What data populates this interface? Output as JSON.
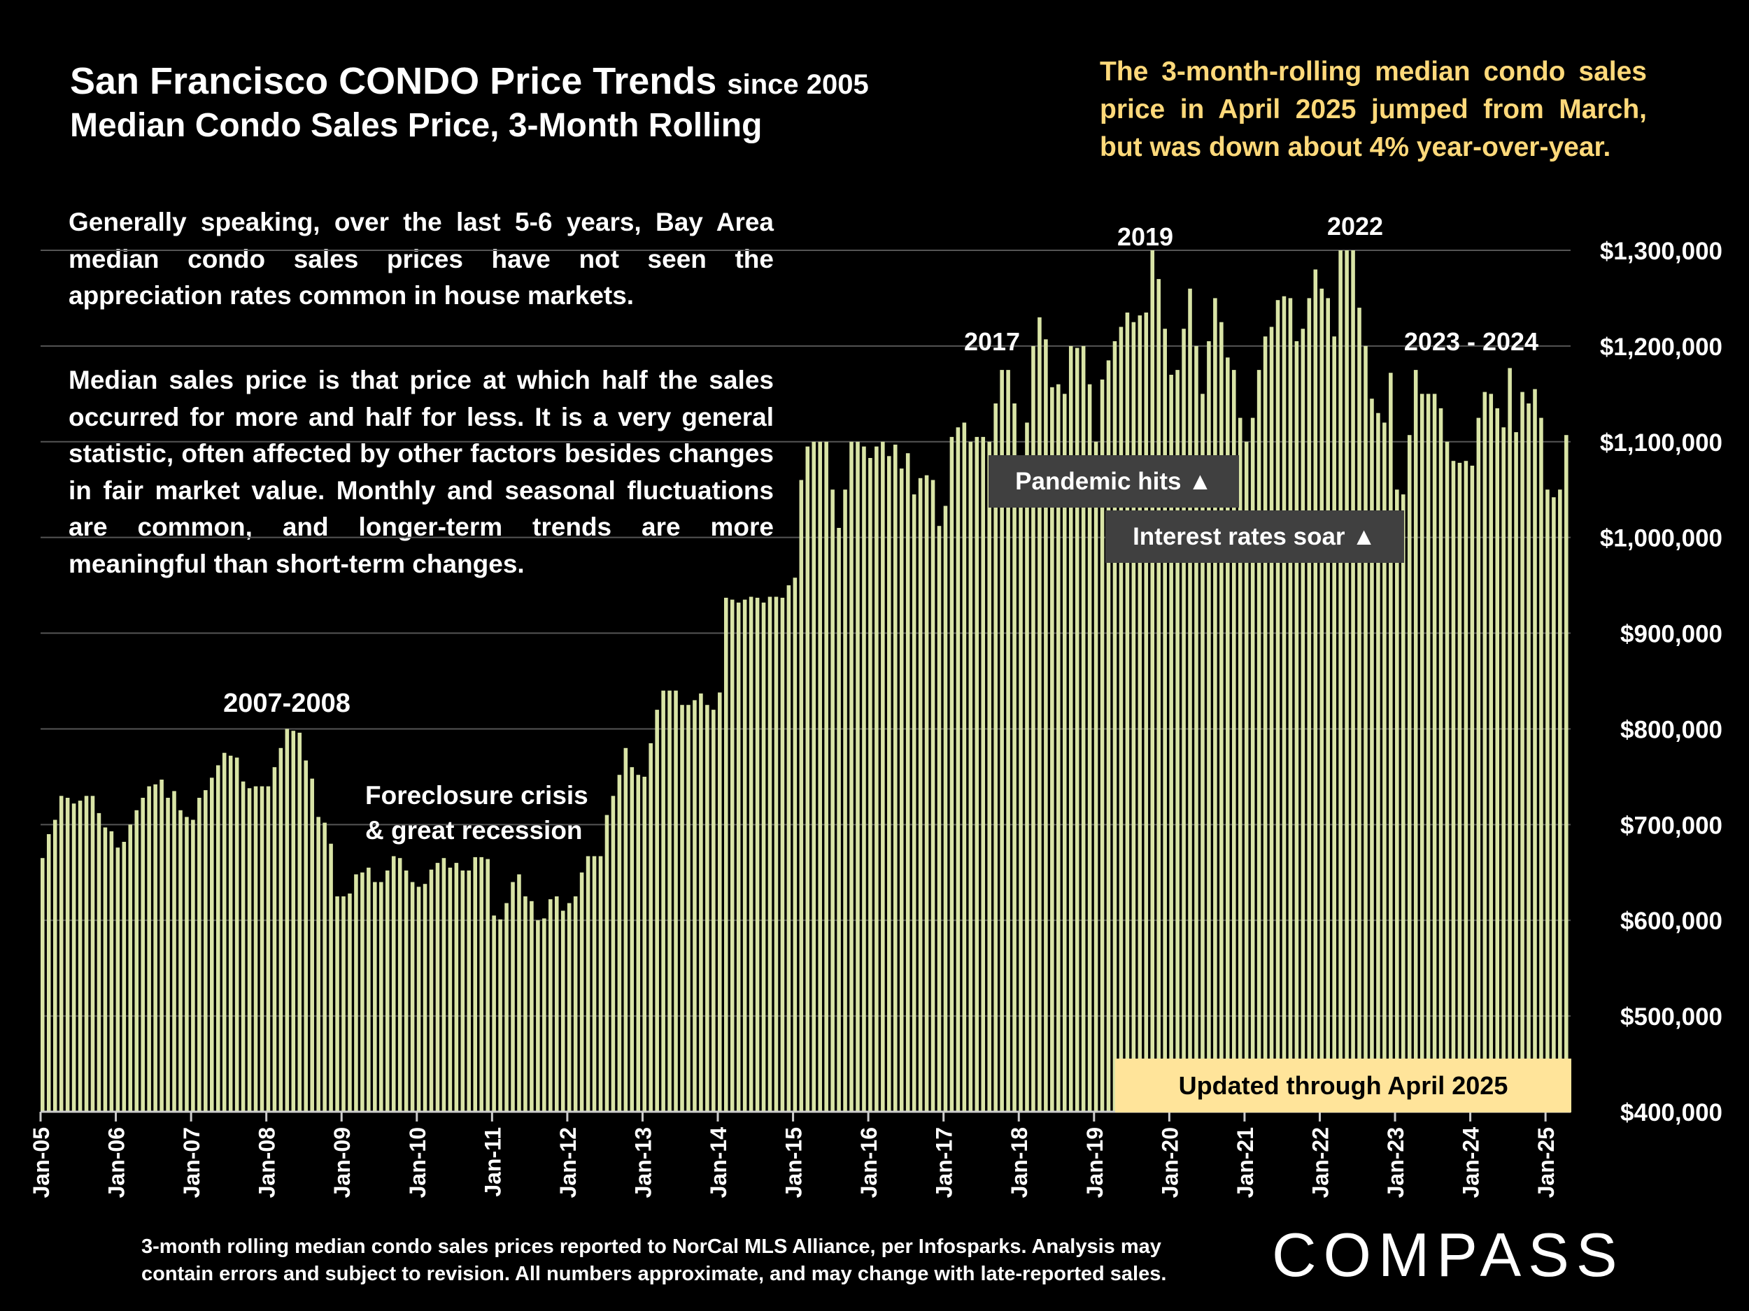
{
  "header": {
    "title": "San Francisco CONDO Price Trends",
    "title_suffix": "since 2005",
    "subtitle": "Median Condo Sales Price, 3-Month Rolling",
    "callout": "The 3-month-rolling median condo sales price in April 2025 jumped from March, but was down about 4% year-over-year."
  },
  "notes": {
    "para1": "Generally speaking, over the last 5-6 years, Bay Area median condo sales prices have not seen the appreciation rates common in house markets.",
    "para2": "Median sales price is that price at which half the sales occurred for more and half for less. It is a very general statistic, often affected by other factors besides changes in fair market value. Monthly and seasonal fluctuations are common, and longer-term trends are more meaningful than short-term changes."
  },
  "footer": {
    "footnote": "3-month rolling median condo sales prices reported to NorCal MLS Alliance, per Infosparks. Analysis may contain errors and subject to revision. All numbers approximate, and may change with late-reported sales.",
    "brand": "COMPASS"
  },
  "colors": {
    "bar": "#d9e4a6",
    "background": "#000000",
    "callout": "#ffd97a",
    "badge": "#ffe49a",
    "annotation_box": "#404040"
  },
  "chart_data": {
    "type": "bar",
    "x_start": "Jan-05",
    "x_end": "Apr-25",
    "xticks": [
      "Jan-05",
      "Jan-06",
      "Jan-07",
      "Jan-08",
      "Jan-09",
      "Jan-10",
      "Jan-11",
      "Jan-12",
      "Jan-13",
      "Jan-14",
      "Jan-15",
      "Jan-16",
      "Jan-17",
      "Jan-18",
      "Jan-19",
      "Jan-20",
      "Jan-21",
      "Jan-22",
      "Jan-23",
      "Jan-24",
      "Jan-25"
    ],
    "yticks": [
      "$400,000",
      "$500,000",
      "$600,000",
      "$700,000",
      "$800,000",
      "$900,000",
      "$1,000,000",
      "$1,100,000",
      "$1,200,000",
      "$1,300,000"
    ],
    "ylim": [
      400000,
      1300000
    ],
    "grid": true,
    "annotations": {
      "a2007": "2007-2008",
      "foreclosure1": "Foreclosure crisis",
      "foreclosure2": "& great recession",
      "a2017": "2017",
      "a2019": "2019",
      "a2022": "2022",
      "a2023": "2023 - 2024",
      "pandemic": "Pandemic hits ▲",
      "rates": "Interest rates soar ▲",
      "updated": "Updated through April 2025"
    },
    "values": [
      665000,
      690000,
      705000,
      730000,
      728000,
      722000,
      725000,
      730000,
      730000,
      712000,
      697000,
      693000,
      676000,
      682000,
      700000,
      715000,
      728000,
      740000,
      742000,
      747000,
      728000,
      735000,
      715000,
      708000,
      705000,
      728000,
      736000,
      749000,
      762000,
      775000,
      772000,
      770000,
      745000,
      738000,
      740000,
      740000,
      740000,
      760000,
      780000,
      800000,
      798000,
      796000,
      767000,
      748000,
      708000,
      702000,
      680000,
      625000,
      625000,
      628000,
      648000,
      650000,
      655000,
      640000,
      640000,
      652000,
      667000,
      665000,
      652000,
      640000,
      635000,
      638000,
      653000,
      660000,
      665000,
      655000,
      660000,
      652000,
      652000,
      666000,
      666000,
      664000,
      605000,
      601000,
      618000,
      640000,
      648000,
      625000,
      620000,
      600000,
      602000,
      622000,
      625000,
      610000,
      618000,
      625000,
      650000,
      667000,
      667000,
      667000,
      710000,
      730000,
      752000,
      780000,
      760000,
      752000,
      750000,
      785000,
      820000,
      840000,
      840000,
      840000,
      825000,
      825000,
      830000,
      837000,
      825000,
      820000,
      838000,
      937000,
      935000,
      932000,
      935000,
      938000,
      937000,
      932000,
      938000,
      938000,
      937000,
      950000,
      958000,
      1060000,
      1095000,
      1100000,
      1100000,
      1100000,
      1050000,
      1010000,
      1050000,
      1100000,
      1100000,
      1095000,
      1083000,
      1095000,
      1100000,
      1085000,
      1097000,
      1072000,
      1088000,
      1045000,
      1062000,
      1065000,
      1060000,
      1012000,
      1033000,
      1105000,
      1115000,
      1120000,
      1100000,
      1105000,
      1105000,
      1100000,
      1140000,
      1175000,
      1175000,
      1140000,
      1060000,
      1120000,
      1200000,
      1230000,
      1207000,
      1157000,
      1160000,
      1150000,
      1200000,
      1198000,
      1200000,
      1160000,
      1100000,
      1165000,
      1185000,
      1205000,
      1220000,
      1235000,
      1225000,
      1232000,
      1235000,
      1300000,
      1270000,
      1218000,
      1170000,
      1175000,
      1218000,
      1260000,
      1200000,
      1150000,
      1205000,
      1250000,
      1225000,
      1188000,
      1175000,
      1125000,
      1100000,
      1125000,
      1175000,
      1210000,
      1220000,
      1248000,
      1252000,
      1250000,
      1205000,
      1218000,
      1250000,
      1280000,
      1260000,
      1250000,
      1210000,
      1300000,
      1300000,
      1300000,
      1240000,
      1200000,
      1145000,
      1130000,
      1120000,
      1172000,
      1050000,
      1045000,
      1107000,
      1175000,
      1150000,
      1150000,
      1150000,
      1135000,
      1100000,
      1080000,
      1078000,
      1080000,
      1075000,
      1125000,
      1152000,
      1150000,
      1135000,
      1115000,
      1177000,
      1110000,
      1152000,
      1140000,
      1155000,
      1125000,
      1050000,
      1042000,
      1050000,
      1107000
    ]
  }
}
